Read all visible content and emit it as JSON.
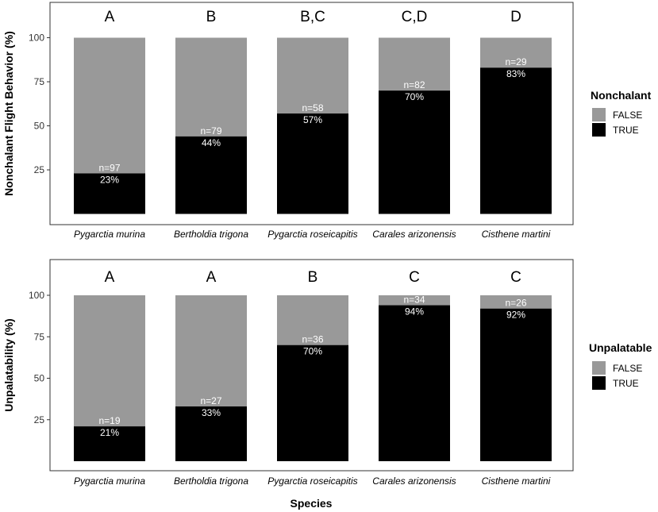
{
  "chart_data": [
    {
      "type": "bar",
      "stacked": true,
      "ylabel": "Nonchalant Flight Behavior (%)",
      "yticks": [
        25,
        50,
        75,
        100
      ],
      "ylim": [
        0,
        100
      ],
      "categories": [
        "Pygarctia murina",
        "Bertholdia trigona",
        "Pygarctia roseicapitis",
        "Carales arizonensis",
        "Cisthene martini"
      ],
      "significance_letters": [
        "A",
        "B",
        "B,C",
        "C,D",
        "D"
      ],
      "series": [
        {
          "name": "TRUE",
          "color": "#000000",
          "values": [
            23,
            44,
            57,
            70,
            83
          ]
        },
        {
          "name": "FALSE",
          "color": "#999999",
          "values": [
            77,
            56,
            43,
            30,
            17
          ]
        }
      ],
      "n_labels": [
        "n=97",
        "n=79",
        "n=58",
        "n=82",
        "n=29"
      ],
      "pct_labels": [
        "23%",
        "44%",
        "57%",
        "70%",
        "83%"
      ],
      "legend": {
        "title": "Nonchalant",
        "entries": [
          "FALSE",
          "TRUE"
        ]
      }
    },
    {
      "type": "bar",
      "stacked": true,
      "ylabel": "Unpalatability (%)",
      "yticks": [
        25,
        50,
        75,
        100
      ],
      "ylim": [
        0,
        100
      ],
      "categories": [
        "Pygarctia murina",
        "Bertholdia trigona",
        "Pygarctia roseicapitis",
        "Carales arizonensis",
        "Cisthene martini"
      ],
      "significance_letters": [
        "A",
        "A",
        "B",
        "C",
        "C"
      ],
      "series": [
        {
          "name": "TRUE",
          "color": "#000000",
          "values": [
            21,
            33,
            70,
            94,
            92
          ]
        },
        {
          "name": "FALSE",
          "color": "#999999",
          "values": [
            79,
            67,
            30,
            6,
            8
          ]
        }
      ],
      "n_labels": [
        "n=19",
        "n=27",
        "n=36",
        "n=34",
        "n=26"
      ],
      "pct_labels": [
        "21%",
        "33%",
        "70%",
        "94%",
        "92%"
      ],
      "legend": {
        "title": "Unpalatable",
        "entries": [
          "FALSE",
          "TRUE"
        ]
      }
    }
  ],
  "xlabel": "Species"
}
